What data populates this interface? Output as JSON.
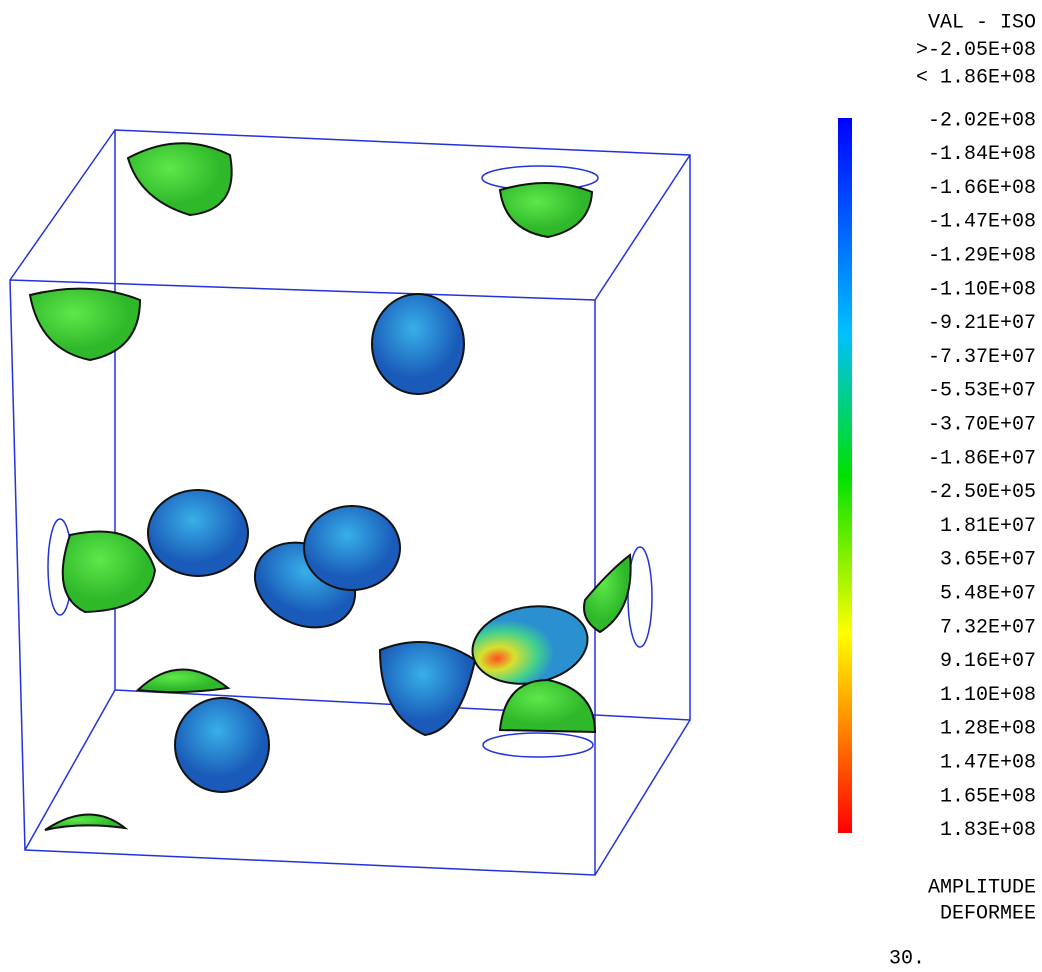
{
  "legend": {
    "header": [
      "VAL - ISO",
      ">-2.05E+08",
      "< 1.86E+08"
    ],
    "levels": [
      "-2.02E+08",
      "-1.84E+08",
      "-1.66E+08",
      "-1.47E+08",
      "-1.29E+08",
      "-1.10E+08",
      "-9.21E+07",
      "-7.37E+07",
      "-5.53E+07",
      "-3.70E+07",
      "-1.86E+07",
      "-2.50E+05",
      "1.81E+07",
      "3.65E+07",
      "5.48E+07",
      "7.32E+07",
      "9.16E+07",
      "1.10E+08",
      "1.28E+08",
      "1.47E+08",
      "1.65E+08",
      "1.83E+08"
    ],
    "footer": [
      "AMPLITUDE",
      "DEFORMEE"
    ],
    "amplitude": "30."
  }
}
